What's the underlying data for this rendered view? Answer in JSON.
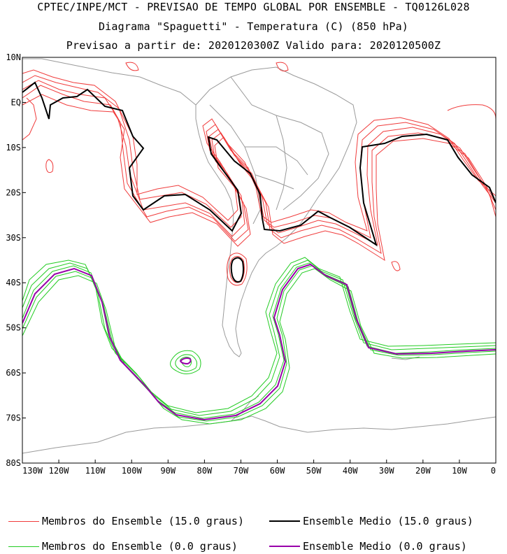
{
  "header": {
    "line1": "CPTEC/INPE/MCT - PREVISAO DE TEMPO GLOBAL POR ENSEMBLE - TQ0126L028",
    "line2": "Diagrama \"Spaguetti\" - Temperatura (C) (850 hPa)",
    "line3": "Previsao a partir de: 2020120300Z  Valido para: 2020120500Z"
  },
  "axes": {
    "y_ticks": [
      "10N",
      "EQ",
      "10S",
      "20S",
      "30S",
      "40S",
      "50S",
      "60S",
      "70S",
      "80S"
    ],
    "x_ticks": [
      "130W",
      "120W",
      "110W",
      "100W",
      "90W",
      "80W",
      "70W",
      "60W",
      "50W",
      "40W",
      "30W",
      "20W",
      "10W",
      "0"
    ],
    "lon_range": [
      -130,
      0
    ],
    "lat_range": [
      -80,
      10
    ]
  },
  "legend": {
    "members_15": "Membros do Ensemble (15.0 graus)",
    "mean_15": "Ensemble Medio (15.0 graus)",
    "members_0": "Membros do Ensemble (0.0 graus)",
    "mean_0": "Ensemble Medio (0.0 graus)"
  },
  "colors": {
    "members_15": "#f03c3c",
    "mean_15": "#000000",
    "members_0": "#22cc22",
    "mean_0": "#9900aa",
    "land": "#9a9a9a"
  }
}
